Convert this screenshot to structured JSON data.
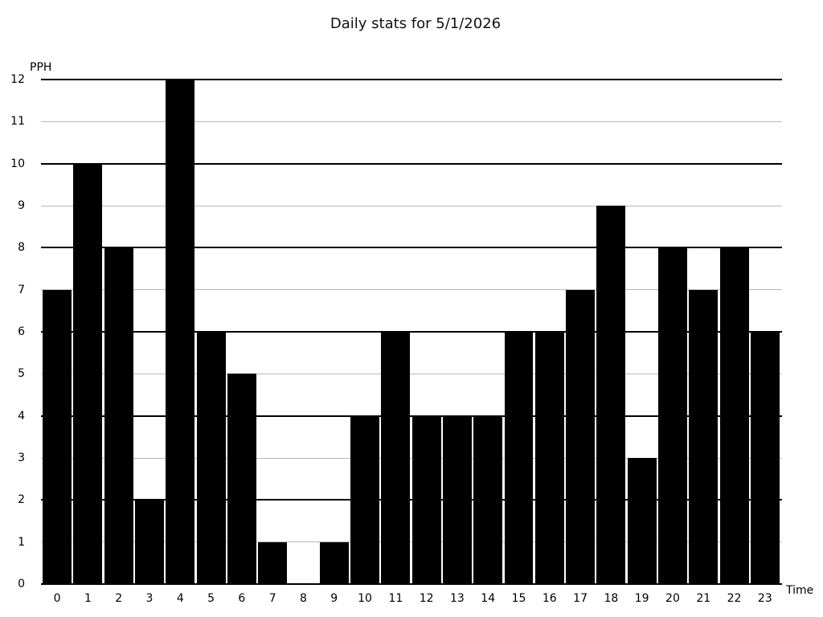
{
  "chart_data": {
    "type": "bar",
    "title": "Daily stats for 5/1/2026",
    "ylabel": "PPH",
    "xlabel": "Time",
    "categories": [
      "0",
      "1",
      "2",
      "3",
      "4",
      "5",
      "6",
      "7",
      "8",
      "9",
      "10",
      "11",
      "12",
      "13",
      "14",
      "15",
      "16",
      "17",
      "18",
      "19",
      "20",
      "21",
      "22",
      "23"
    ],
    "values": [
      7,
      10,
      8,
      2,
      12,
      6,
      5,
      1,
      0,
      1,
      4,
      6,
      4,
      4,
      4,
      6,
      6,
      7,
      9,
      3,
      8,
      7,
      8,
      6
    ],
    "ylim": [
      0,
      12
    ],
    "yticks": [
      0,
      1,
      2,
      3,
      4,
      5,
      6,
      7,
      8,
      9,
      10,
      11,
      12
    ],
    "grid": "horizontal",
    "legend": "none",
    "colors": {
      "bar": "#000000",
      "grid_major": "#000000",
      "grid_minor": "#b8b8b8",
      "background": "#ffffff",
      "text": "#111111"
    }
  }
}
